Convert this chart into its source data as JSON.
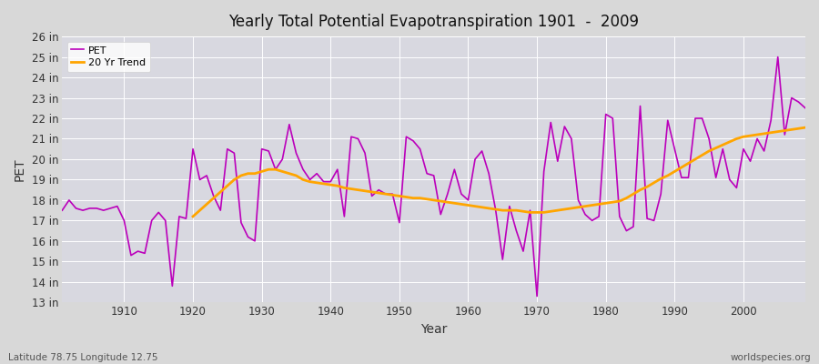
{
  "title": "Yearly Total Potential Evapotranspiration 1901  -  2009",
  "xlabel": "Year",
  "ylabel": "PET",
  "subtitle_left": "Latitude 78.75 Longitude 12.75",
  "subtitle_right": "worldspecies.org",
  "pet_color": "#bb00bb",
  "trend_color": "#ffa500",
  "fig_bg_color": "#d8d8d8",
  "plot_bg_color": "#d8d8e0",
  "grid_color": "#ffffff",
  "ylim": [
    13,
    26
  ],
  "yticks": [
    13,
    14,
    15,
    16,
    17,
    18,
    19,
    20,
    21,
    22,
    23,
    24,
    25,
    26
  ],
  "xlim": [
    1901,
    2009
  ],
  "xticks": [
    1910,
    1920,
    1930,
    1940,
    1950,
    1960,
    1970,
    1980,
    1990,
    2000
  ],
  "years": [
    1901,
    1902,
    1903,
    1904,
    1905,
    1906,
    1907,
    1908,
    1909,
    1910,
    1911,
    1912,
    1913,
    1914,
    1915,
    1916,
    1917,
    1918,
    1919,
    1920,
    1921,
    1922,
    1923,
    1924,
    1925,
    1926,
    1927,
    1928,
    1929,
    1930,
    1931,
    1932,
    1933,
    1934,
    1935,
    1936,
    1937,
    1938,
    1939,
    1940,
    1941,
    1942,
    1943,
    1944,
    1945,
    1946,
    1947,
    1948,
    1949,
    1950,
    1951,
    1952,
    1953,
    1954,
    1955,
    1956,
    1957,
    1958,
    1959,
    1960,
    1961,
    1962,
    1963,
    1964,
    1965,
    1966,
    1967,
    1968,
    1969,
    1970,
    1971,
    1972,
    1973,
    1974,
    1975,
    1976,
    1977,
    1978,
    1979,
    1980,
    1981,
    1982,
    1983,
    1984,
    1985,
    1986,
    1987,
    1988,
    1989,
    1990,
    1991,
    1992,
    1993,
    1994,
    1995,
    1996,
    1997,
    1998,
    1999,
    2000,
    2001,
    2002,
    2003,
    2004,
    2005,
    2006,
    2007,
    2008,
    2009
  ],
  "pet_values": [
    17.5,
    18.0,
    17.6,
    17.5,
    17.6,
    17.6,
    17.5,
    17.6,
    17.7,
    17.0,
    15.3,
    15.5,
    15.4,
    17.0,
    17.4,
    17.0,
    13.8,
    17.2,
    17.1,
    20.5,
    19.0,
    19.2,
    18.2,
    17.5,
    20.5,
    20.3,
    16.9,
    16.2,
    16.0,
    20.5,
    20.4,
    19.5,
    20.0,
    21.7,
    20.3,
    19.5,
    19.0,
    19.3,
    18.9,
    18.9,
    19.5,
    17.2,
    21.1,
    21.0,
    20.3,
    18.2,
    18.5,
    18.3,
    18.3,
    16.9,
    21.1,
    20.9,
    20.5,
    19.3,
    19.2,
    17.3,
    18.3,
    19.5,
    18.3,
    18.0,
    20.0,
    20.4,
    19.3,
    17.5,
    15.1,
    17.7,
    16.5,
    15.5,
    17.5,
    13.3,
    19.4,
    21.8,
    19.9,
    21.6,
    21.0,
    18.0,
    17.3,
    17.0,
    17.2,
    22.2,
    22.0,
    17.2,
    16.5,
    16.7,
    22.6,
    17.1,
    17.0,
    18.3,
    21.9,
    20.5,
    19.1,
    19.1,
    22.0,
    22.0,
    21.0,
    19.1,
    20.5,
    19.0,
    18.6,
    20.5,
    19.9,
    21.0,
    20.4,
    21.9,
    25.0,
    21.2,
    23.0,
    22.8,
    22.5
  ],
  "trend_values": [
    null,
    null,
    null,
    null,
    null,
    null,
    null,
    null,
    null,
    null,
    null,
    null,
    null,
    null,
    null,
    null,
    null,
    null,
    null,
    17.2,
    17.5,
    17.8,
    18.1,
    18.4,
    18.7,
    19.0,
    19.2,
    19.3,
    19.3,
    19.4,
    19.5,
    19.5,
    19.4,
    19.3,
    19.2,
    19.0,
    18.9,
    18.85,
    18.8,
    18.75,
    18.7,
    18.6,
    18.55,
    18.5,
    18.45,
    18.4,
    18.35,
    18.3,
    18.25,
    18.2,
    18.15,
    18.1,
    18.1,
    18.05,
    18.0,
    17.95,
    17.9,
    17.85,
    17.8,
    17.75,
    17.7,
    17.65,
    17.6,
    17.55,
    17.5,
    17.5,
    17.5,
    17.45,
    17.4,
    17.4,
    17.4,
    17.45,
    17.5,
    17.55,
    17.6,
    17.65,
    17.7,
    17.75,
    17.8,
    17.85,
    17.9,
    17.95,
    18.1,
    18.3,
    18.5,
    18.65,
    18.85,
    19.05,
    19.2,
    19.4,
    19.6,
    19.8,
    20.0,
    20.2,
    20.4,
    20.55,
    20.7,
    20.85,
    21.0,
    21.1,
    21.15,
    21.2,
    21.25,
    21.3,
    21.35,
    21.4,
    21.45,
    21.5,
    21.55
  ]
}
